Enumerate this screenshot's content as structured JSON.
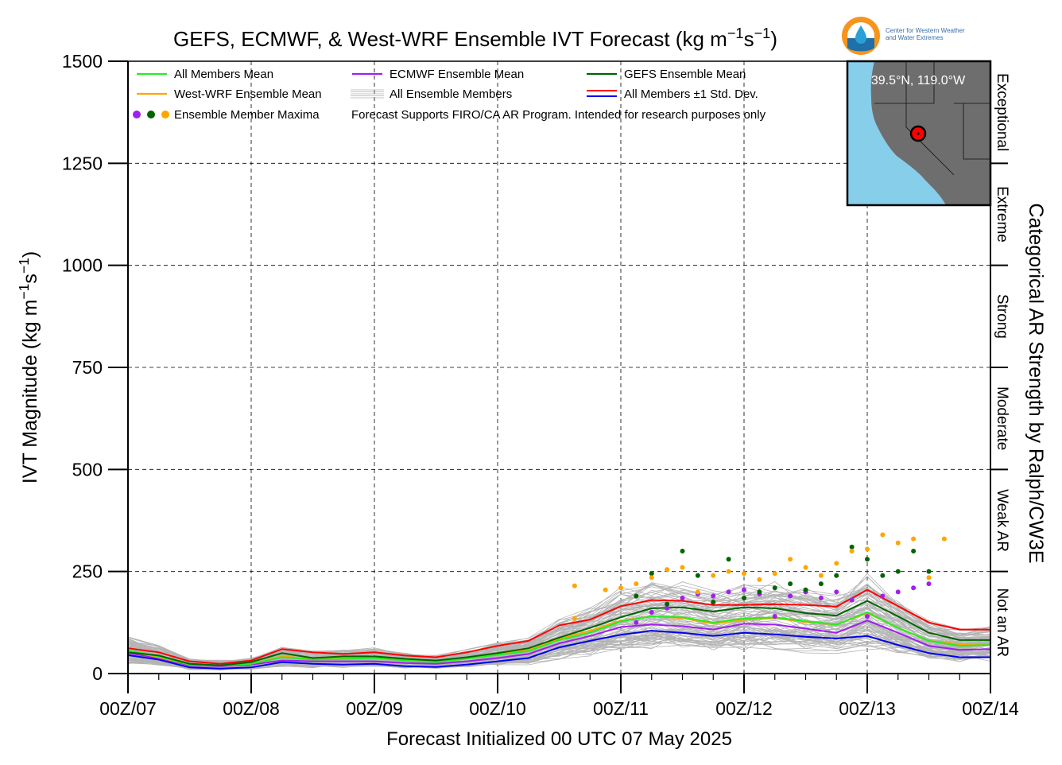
{
  "chart_data": {
    "type": "line",
    "title": "GEFS, ECMWF, & West-WRF Ensemble IVT Forecast (kg m⁻¹s⁻¹)",
    "ylabel": "IVT Magnitude (kg m⁻¹s⁻¹)",
    "xlabel": "Forecast Initialized 00 UTC 07 May 2025",
    "right_label": "Categorical AR Strength by Ralph/CW3E",
    "ylim": [
      0,
      1500
    ],
    "yticks": [
      0,
      250,
      500,
      750,
      1000,
      1250,
      1500
    ],
    "ytick_labels": [
      "0",
      "250",
      "500",
      "750",
      "1000",
      "1250",
      "1500"
    ],
    "xlim": [
      0,
      168
    ],
    "xticks": [
      0,
      24,
      48,
      72,
      96,
      120,
      144,
      168
    ],
    "xtick_labels": [
      "00Z/07",
      "00Z/08",
      "00Z/09",
      "00Z/10",
      "00Z/11",
      "00Z/12",
      "00Z/13",
      "00Z/14"
    ],
    "grid": true,
    "ar_categories": [
      {
        "label": "Not an AR",
        "from": 0,
        "to": 250
      },
      {
        "label": "Weak AR",
        "from": 250,
        "to": 500
      },
      {
        "label": "Moderate",
        "from": 500,
        "to": 750
      },
      {
        "label": "Strong",
        "from": 750,
        "to": 1000
      },
      {
        "label": "Extreme",
        "from": 1000,
        "to": 1250
      },
      {
        "label": "Exceptional",
        "from": 1250,
        "to": 1500
      }
    ],
    "legend": {
      "placement": "top-left",
      "items": [
        {
          "label": "All Members Mean",
          "color": "#22ee22",
          "kind": "line"
        },
        {
          "label": "ECMWF Ensemble Mean",
          "color": "#a020f0",
          "kind": "line"
        },
        {
          "label": "GEFS Ensemble Mean",
          "color": "#006400",
          "kind": "line"
        },
        {
          "label": "West-WRF Ensemble Mean",
          "color": "#ffa500",
          "kind": "line"
        },
        {
          "label": "All Ensemble Members",
          "color": "#b0b0b0",
          "kind": "multiline"
        },
        {
          "label": "All Members ±1 Std. Dev.",
          "color": "#ff0000",
          "color2": "#0000ee",
          "kind": "dualline"
        },
        {
          "label": "Ensemble Member Maxima",
          "colors": [
            "#a020f0",
            "#006400",
            "#ffa500"
          ],
          "kind": "dots"
        }
      ],
      "note": "Forecast Supports FIRO/CA AR Program. Intended for research purposes only"
    },
    "inset_map": {
      "label": "39.5°N, 119.0°W",
      "ocean_color": "#87ceeb",
      "land_color": "#6e6e6e"
    },
    "logo": {
      "line1": "Center for Western Weather",
      "line2": "and Water Extremes"
    },
    "x": [
      0,
      6,
      12,
      18,
      24,
      30,
      36,
      42,
      48,
      54,
      60,
      66,
      72,
      78,
      84,
      90,
      96,
      102,
      108,
      114,
      120,
      126,
      132,
      138,
      144,
      150,
      156,
      162,
      168
    ],
    "series": [
      {
        "name": "All Members Mean",
        "color": "#22ee22",
        "values": [
          57,
          42,
          22,
          20,
          24,
          40,
          34,
          36,
          38,
          32,
          28,
          36,
          46,
          55,
          82,
          100,
          128,
          140,
          138,
          125,
          135,
          138,
          128,
          120,
          150,
          112,
          80,
          68,
          70
        ]
      },
      {
        "name": "ECMWF Ensemble Mean",
        "color": "#a020f0",
        "values": [
          50,
          38,
          20,
          18,
          22,
          32,
          30,
          30,
          30,
          26,
          24,
          30,
          38,
          48,
          74,
          92,
          114,
          120,
          116,
          108,
          122,
          120,
          110,
          100,
          130,
          100,
          68,
          58,
          60
        ]
      },
      {
        "name": "GEFS Ensemble Mean",
        "color": "#006400",
        "values": [
          52,
          44,
          24,
          20,
          28,
          50,
          38,
          42,
          42,
          36,
          32,
          40,
          50,
          62,
          88,
          112,
          138,
          160,
          162,
          152,
          162,
          160,
          148,
          142,
          178,
          140,
          100,
          82,
          82
        ]
      },
      {
        "name": "West-WRF Ensemble Mean",
        "color": "#ffa500",
        "values": [
          55,
          40,
          22,
          20,
          24,
          42,
          36,
          38,
          40,
          32,
          30,
          38,
          48,
          58,
          85,
          105,
          130,
          140,
          136,
          122,
          132,
          136,
          126,
          120,
          148,
          112,
          80,
          72,
          72
        ]
      },
      {
        "name": "All Members ±1 Std. Dev.",
        "color": "#ff0000",
        "values": [
          62,
          52,
          30,
          24,
          32,
          60,
          52,
          48,
          52,
          44,
          40,
          52,
          68,
          80,
          118,
          132,
          165,
          180,
          178,
          168,
          168,
          170,
          168,
          164,
          205,
          165,
          125,
          108,
          108
        ]
      },
      {
        "name": "All Members ±1 Std. Dev.",
        "color": "#0000ee",
        "values": [
          45,
          34,
          15,
          12,
          15,
          28,
          24,
          22,
          24,
          18,
          16,
          22,
          30,
          38,
          64,
          80,
          95,
          105,
          100,
          92,
          100,
          96,
          90,
          86,
          92,
          70,
          50,
          40,
          40
        ]
      }
    ],
    "member_maxima": {
      "ecmwf": {
        "color": "#a020f0",
        "points": [
          [
            99,
            125
          ],
          [
            102,
            150
          ],
          [
            105,
            160
          ],
          [
            108,
            185
          ],
          [
            111,
            195
          ],
          [
            114,
            190
          ],
          [
            117,
            200
          ],
          [
            120,
            205
          ],
          [
            123,
            195
          ],
          [
            126,
            140
          ],
          [
            129,
            190
          ],
          [
            132,
            200
          ],
          [
            135,
            185
          ],
          [
            138,
            200
          ],
          [
            141,
            180
          ],
          [
            144,
            140
          ],
          [
            147,
            190
          ],
          [
            150,
            200
          ],
          [
            153,
            210
          ],
          [
            156,
            220
          ]
        ]
      },
      "gefs": {
        "color": "#006400",
        "points": [
          [
            99,
            190
          ],
          [
            102,
            245
          ],
          [
            105,
            170
          ],
          [
            108,
            300
          ],
          [
            111,
            240
          ],
          [
            114,
            175
          ],
          [
            117,
            280
          ],
          [
            120,
            185
          ],
          [
            123,
            200
          ],
          [
            126,
            210
          ],
          [
            129,
            220
          ],
          [
            132,
            205
          ],
          [
            135,
            220
          ],
          [
            138,
            240
          ],
          [
            141,
            310
          ],
          [
            144,
            280
          ],
          [
            147,
            240
          ],
          [
            150,
            250
          ],
          [
            153,
            300
          ],
          [
            156,
            250
          ]
        ]
      },
      "westwrf": {
        "color": "#ffa500",
        "points": [
          [
            87,
            215
          ],
          [
            87,
            135
          ],
          [
            93,
            205
          ],
          [
            96,
            210
          ],
          [
            99,
            220
          ],
          [
            102,
            235
          ],
          [
            105,
            255
          ],
          [
            108,
            260
          ],
          [
            111,
            200
          ],
          [
            114,
            240
          ],
          [
            117,
            250
          ],
          [
            120,
            245
          ],
          [
            123,
            230
          ],
          [
            126,
            245
          ],
          [
            129,
            280
          ],
          [
            132,
            260
          ],
          [
            135,
            240
          ],
          [
            138,
            270
          ],
          [
            141,
            300
          ],
          [
            144,
            305
          ],
          [
            147,
            340
          ],
          [
            150,
            320
          ],
          [
            153,
            330
          ],
          [
            156,
            235
          ],
          [
            159,
            330
          ]
        ]
      }
    }
  }
}
